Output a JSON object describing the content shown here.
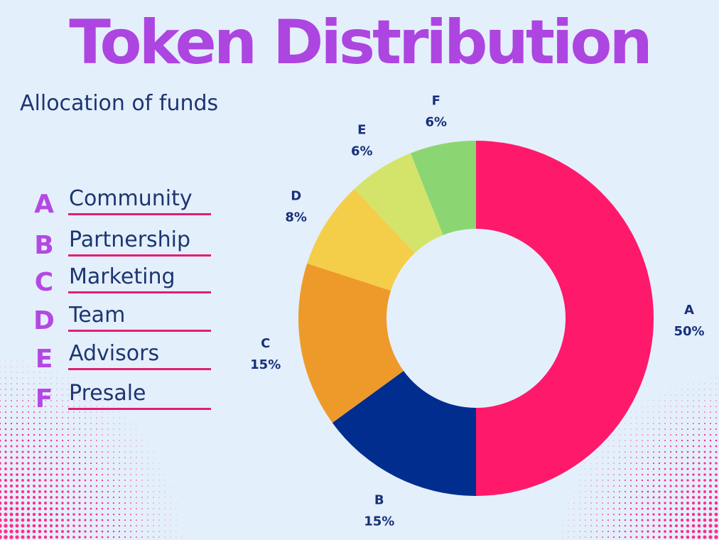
{
  "title": "Token Distribution",
  "subtitle": "Allocation of funds",
  "legend": [
    {
      "letter": "A",
      "label": "Community"
    },
    {
      "letter": "B",
      "label": "Partnership"
    },
    {
      "letter": "C",
      "label": "Marketing"
    },
    {
      "letter": "D",
      "label": "Team"
    },
    {
      "letter": "E",
      "label": "Advisors"
    },
    {
      "letter": "F",
      "label": "Presale"
    }
  ],
  "colors": {
    "background": "#e4effc",
    "title": "#ad45e0",
    "legend_letter": "#b349e2",
    "text": "#1d3670",
    "underline": "#e21e75",
    "dots": "#ff2d8a"
  },
  "chart_data": {
    "type": "pie",
    "variant": "donut",
    "title": "Token Distribution",
    "subtitle": "Allocation of funds",
    "legend_position": "left",
    "slices": [
      {
        "label": "A",
        "value": 50,
        "display": "50%",
        "color": "#fe196b"
      },
      {
        "label": "B",
        "value": 15,
        "display": "15%",
        "color": "#002d8e"
      },
      {
        "label": "C",
        "value": 15,
        "display": "15%",
        "color": "#ee9a2a"
      },
      {
        "label": "D",
        "value": 8,
        "display": "8%",
        "color": "#f4ce48"
      },
      {
        "label": "E",
        "value": 6,
        "display": "6%",
        "color": "#d4e46a"
      },
      {
        "label": "F",
        "value": 6,
        "display": "6%",
        "color": "#8bd672"
      }
    ]
  }
}
